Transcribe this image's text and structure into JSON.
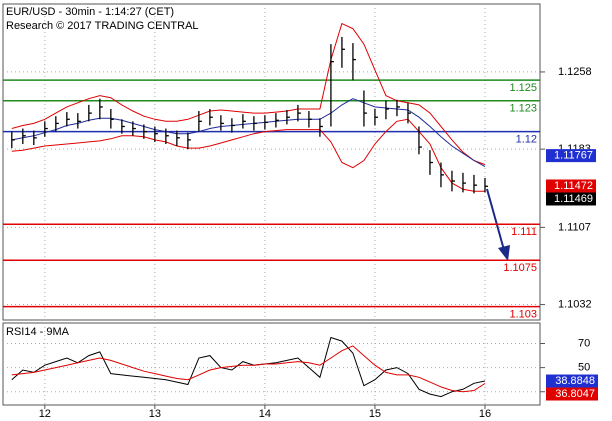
{
  "chart_data": [
    {
      "type": "hlc",
      "title": "EUR/USD - 30min - 1:14:27 (CET)",
      "subtitle": "Research © 2017 TRADING CENTRAL",
      "x": [
        11.7,
        11.8,
        11.9,
        12.0,
        12.1,
        12.2,
        12.3,
        12.4,
        12.5,
        12.6,
        12.7,
        12.8,
        12.9,
        13.0,
        13.1,
        13.2,
        13.3,
        13.4,
        13.5,
        13.6,
        13.7,
        13.8,
        13.9,
        14.0,
        14.1,
        14.2,
        14.3,
        14.4,
        14.5,
        14.6,
        14.7,
        14.8,
        14.9,
        15.0,
        15.1,
        15.2,
        15.3,
        15.4,
        15.5,
        15.6,
        15.7,
        15.8,
        15.9,
        16.0
      ],
      "high": [
        1.12,
        1.1203,
        1.1201,
        1.121,
        1.1215,
        1.1219,
        1.1218,
        1.1226,
        1.1232,
        1.1222,
        1.1212,
        1.121,
        1.1207,
        1.1205,
        1.1203,
        1.1201,
        1.1199,
        1.122,
        1.1222,
        1.1216,
        1.1213,
        1.1217,
        1.1215,
        1.1216,
        1.1218,
        1.1221,
        1.1226,
        1.122,
        1.1213,
        1.1285,
        1.1292,
        1.1286,
        1.124,
        1.1222,
        1.123,
        1.1231,
        1.1228,
        1.1205,
        1.1182,
        1.117,
        1.1162,
        1.116,
        1.1158,
        1.1155
      ],
      "low": [
        1.1184,
        1.1188,
        1.1187,
        1.1195,
        1.12,
        1.1205,
        1.1203,
        1.121,
        1.1212,
        1.1203,
        1.1198,
        1.1196,
        1.1193,
        1.119,
        1.1188,
        1.1186,
        1.1183,
        1.12,
        1.1206,
        1.1201,
        1.1199,
        1.1203,
        1.1201,
        1.1202,
        1.1204,
        1.1207,
        1.121,
        1.1204,
        1.1195,
        1.1205,
        1.1262,
        1.125,
        1.1205,
        1.1206,
        1.1212,
        1.1215,
        1.1208,
        1.1178,
        1.1158,
        1.1146,
        1.1142,
        1.1141,
        1.114,
        1.1141
      ],
      "close": [
        1.1192,
        1.1196,
        1.1194,
        1.1203,
        1.1208,
        1.1212,
        1.121,
        1.1218,
        1.1224,
        1.1212,
        1.1205,
        1.1203,
        1.12,
        1.1198,
        1.1196,
        1.1194,
        1.1192,
        1.121,
        1.1214,
        1.1208,
        1.1206,
        1.121,
        1.1208,
        1.1209,
        1.1211,
        1.1214,
        1.1218,
        1.1212,
        1.1205,
        1.1268,
        1.128,
        1.127,
        1.1218,
        1.1214,
        1.1222,
        1.1224,
        1.1218,
        1.1185,
        1.117,
        1.1158,
        1.1152,
        1.115,
        1.1148,
        1.11469
      ],
      "bar_color": "#000000",
      "bands": {
        "upper": [
          1.1203,
          1.1206,
          1.1208,
          1.1212,
          1.1218,
          1.1224,
          1.1228,
          1.1232,
          1.1235,
          1.1233,
          1.1226,
          1.122,
          1.1215,
          1.1212,
          1.121,
          1.121,
          1.1212,
          1.1216,
          1.122,
          1.1221,
          1.122,
          1.1219,
          1.1218,
          1.1218,
          1.1219,
          1.122,
          1.1222,
          1.1222,
          1.1222,
          1.127,
          1.1305,
          1.13,
          1.1285,
          1.126,
          1.1235,
          1.123,
          1.1228,
          1.1226,
          1.1218,
          1.1205,
          1.1192,
          1.118,
          1.1172,
          1.1168
        ],
        "middle": [
          1.1192,
          1.1194,
          1.1196,
          1.1199,
          1.1202,
          1.1206,
          1.1208,
          1.1211,
          1.1213,
          1.1213,
          1.1211,
          1.1208,
          1.1205,
          1.1202,
          1.12,
          1.1198,
          1.1198,
          1.12,
          1.1203,
          1.1205,
          1.1206,
          1.1207,
          1.1208,
          1.1209,
          1.121,
          1.1211,
          1.1212,
          1.1212,
          1.1212,
          1.1218,
          1.1226,
          1.1232,
          1.1228,
          1.1224,
          1.1223,
          1.1222,
          1.1221,
          1.1214,
          1.1205,
          1.1195,
          1.1186,
          1.1179,
          1.1172,
          1.1166
        ],
        "lower": [
          1.1181,
          1.1182,
          1.1184,
          1.1186,
          1.1187,
          1.1188,
          1.1189,
          1.119,
          1.1191,
          1.1193,
          1.1196,
          1.1196,
          1.1195,
          1.1192,
          1.119,
          1.1186,
          1.1184,
          1.1184,
          1.1186,
          1.1189,
          1.1192,
          1.1195,
          1.1198,
          1.12,
          1.1201,
          1.1202,
          1.1202,
          1.1202,
          1.1202,
          1.119,
          1.117,
          1.1165,
          1.1172,
          1.1188,
          1.12,
          1.121,
          1.1212,
          1.12,
          1.1188,
          1.1165,
          1.115,
          1.1144,
          1.1142,
          1.1142
        ],
        "band_color": "#e00000",
        "middle_color": "#1f2a9a"
      },
      "levels": [
        {
          "value": 1.125,
          "color": "#1f8a1f"
        },
        {
          "value": 1.123,
          "color": "#1f8a1f"
        },
        {
          "value": 1.12,
          "color": "#1f2fb0"
        },
        {
          "value": 1.111,
          "color": "#e00000"
        },
        {
          "value": 1.1075,
          "color": "#e00000"
        },
        {
          "value": 1.103,
          "color": "#e00000"
        }
      ],
      "price_labels": [
        {
          "value": 1.11767,
          "color": "#1f2fd0"
        },
        {
          "value": 1.11472,
          "color": "#e00000"
        },
        {
          "value": 1.11469,
          "color": "#000000"
        }
      ],
      "xlim": [
        11.62,
        16.5
      ],
      "xticks": [
        12,
        13,
        14,
        15,
        16
      ],
      "ylim": [
        1.1017,
        1.1324
      ],
      "yticks": [
        1.1032,
        1.1107,
        1.1183,
        1.1258
      ],
      "grid": true
    },
    {
      "type": "line",
      "title": "RSI14 - 9MA",
      "series": [
        {
          "color": "#000000",
          "values": [
            40,
            48,
            46,
            52,
            55,
            58,
            54,
            60,
            63,
            45,
            44,
            43,
            42,
            41,
            40,
            38,
            36,
            58,
            60,
            50,
            48,
            55,
            52,
            53,
            54,
            56,
            58,
            50,
            42,
            75,
            72,
            62,
            35,
            40,
            48,
            50,
            45,
            32,
            28,
            26,
            30,
            32,
            37,
            38.8848
          ]
        },
        {
          "color": "#e00000",
          "values": [
            44,
            45,
            46,
            48,
            50,
            52,
            54,
            56,
            58,
            56,
            53,
            50,
            47,
            45,
            43,
            41,
            40,
            44,
            48,
            50,
            51,
            52,
            52,
            53,
            53,
            54,
            55,
            54,
            52,
            58,
            64,
            68,
            60,
            52,
            46,
            44,
            44,
            42,
            38,
            34,
            31,
            30,
            31,
            36.8047
          ]
        }
      ],
      "value_boxes": [
        {
          "value": 38.8848,
          "color": "#1f2fd0"
        },
        {
          "value": 36.8047,
          "color": "#e00000"
        }
      ],
      "ylim": [
        19,
        87
      ],
      "yticks": [
        30,
        50,
        70
      ],
      "grid": true
    }
  ]
}
